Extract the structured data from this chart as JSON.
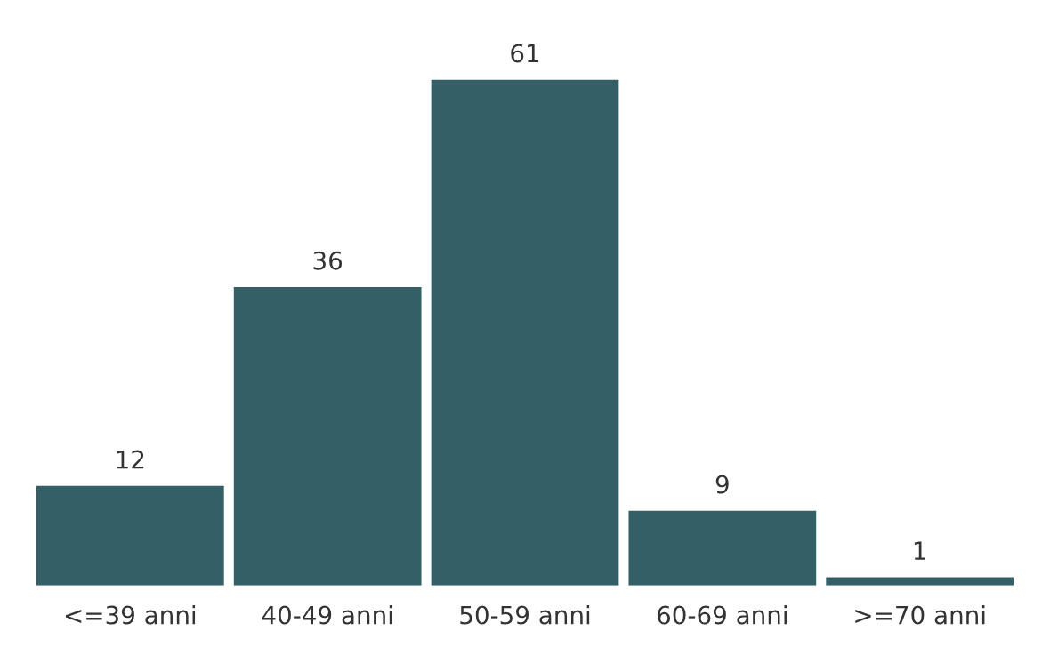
{
  "chart_data": {
    "type": "bar",
    "categories": [
      "<=39 anni",
      "40-49 anni",
      "50-59 anni",
      "60-69 anni",
      ">=70 anni"
    ],
    "values": [
      12,
      36,
      61,
      9,
      1
    ],
    "color": "#355f66",
    "data_labels": true,
    "grid": false,
    "legend": false
  }
}
